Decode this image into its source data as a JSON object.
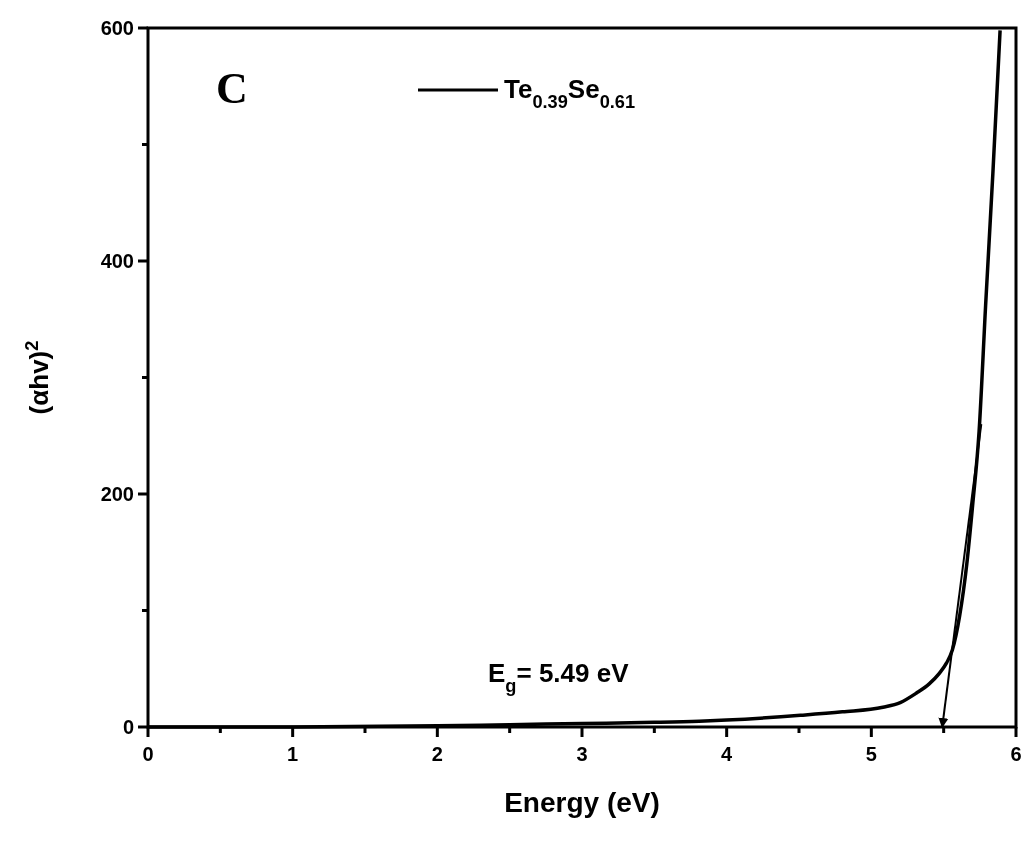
{
  "chart_data": {
    "type": "line",
    "xlabel": "Energy (eV)",
    "ylabel": "(αhv)$^{2}$",
    "annotations": [
      "C",
      "E$_{g}$= 5.49 eV"
    ],
    "xlim": [
      0,
      6
    ],
    "ylim": [
      0,
      600
    ],
    "xticks": [
      0,
      {
        "value": 0.5,
        "label": null
      },
      1,
      {
        "value": 1.5,
        "label": null
      },
      2,
      {
        "value": 2.5,
        "label": null
      },
      3,
      {
        "value": 3.5,
        "label": null
      },
      4,
      {
        "value": 4.5,
        "label": null
      },
      5,
      {
        "value": 5.5,
        "label": null
      },
      6
    ],
    "yticks": [
      0,
      {
        "value": 100,
        "label": null
      },
      200,
      {
        "value": 300,
        "label": null
      },
      400,
      {
        "value": 500,
        "label": null
      },
      600
    ],
    "legend": "top",
    "grid": false,
    "line_style": "solid",
    "series": [
      {
        "name": "Te$_{0.39}$Se$_{0.61}$",
        "color": "#000000",
        "x": [
          0,
          1,
          2,
          2.5,
          3,
          3.5,
          3.81,
          4,
          4.51,
          4.8,
          5.08,
          5.2,
          5.31,
          5.4,
          5.47,
          5.52,
          5.56,
          5.61,
          5.66,
          5.7,
          5.745,
          5.79,
          5.84,
          5.89
        ],
        "values": [
          0,
          0,
          1,
          2,
          3,
          4,
          5,
          6,
          10,
          13,
          17,
          21,
          29,
          37,
          46,
          55,
          66,
          95,
          140,
          190,
          254,
          362,
          475,
          598
        ]
      },
      {
        "type": "line",
        "color": "#000000",
        "x": [
          5.76,
          5.49
        ],
        "values": [
          260,
          0
        ]
      }
    ]
  }
}
